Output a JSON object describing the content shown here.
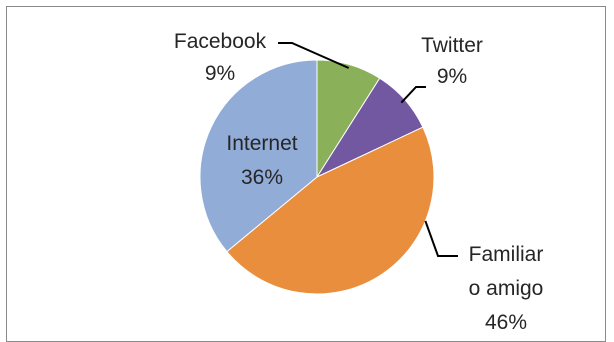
{
  "chart_data": {
    "type": "pie",
    "title": "",
    "slices": [
      {
        "label_lines": [
          "Facebook"
        ],
        "value": 9,
        "pct_label": "9%",
        "color": "#8ab05a"
      },
      {
        "label_lines": [
          "Twitter"
        ],
        "value": 9,
        "pct_label": "9%",
        "color": "#7158a0"
      },
      {
        "label_lines": [
          "Familiar",
          "o amigo"
        ],
        "value": 46,
        "pct_label": "46%",
        "color": "#e98e3c"
      },
      {
        "label_lines": [
          "Internet"
        ],
        "value": 36,
        "pct_label": "36%",
        "color": "#92acd8"
      }
    ],
    "start": "12 o'clock",
    "direction": "clockwise",
    "legend": "none"
  }
}
